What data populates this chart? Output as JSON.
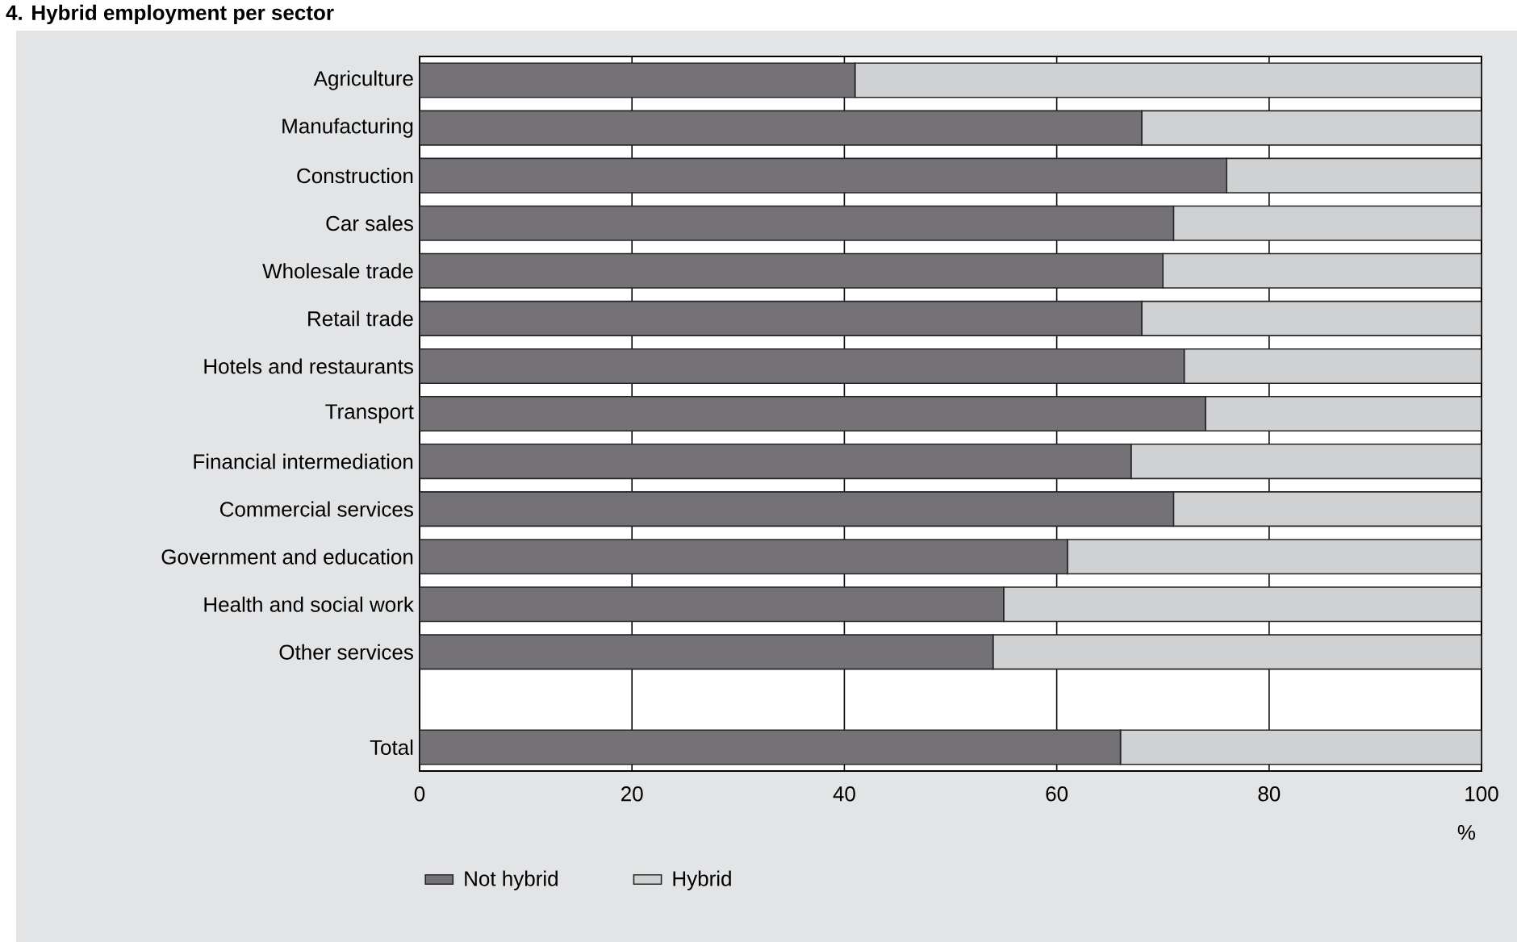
{
  "chart_data": {
    "type": "bar",
    "title": "4.  Hybrid employment per sector",
    "xlabel": "%",
    "orientation": "horizontal",
    "stacked": true,
    "grid": "x",
    "legend": "bottom",
    "categories": [
      "Agriculture",
      "Manufacturing",
      "Construction",
      "Car sales",
      "Wholesale trade",
      "Retail trade",
      "Hotels and restaurants",
      "Transport",
      "Financial intermediation",
      "Commercial services",
      "Government and education",
      "Health and social work",
      "Other services",
      null,
      "Total"
    ],
    "series": [
      {
        "name": "Not hybrid",
        "color": "#747277",
        "values": [
          41,
          68,
          76,
          71,
          70,
          68,
          72,
          74,
          67,
          71,
          61,
          55,
          54,
          null,
          66
        ]
      },
      {
        "name": "Hybrid",
        "color": "#d0d1d3",
        "values": [
          59,
          32,
          24,
          29,
          30,
          32,
          28,
          26,
          33,
          29,
          39,
          45,
          46,
          null,
          34
        ]
      }
    ],
    "xlim": [
      0,
      100
    ],
    "xticks": [
      0,
      20,
      40,
      60,
      80,
      100
    ]
  }
}
